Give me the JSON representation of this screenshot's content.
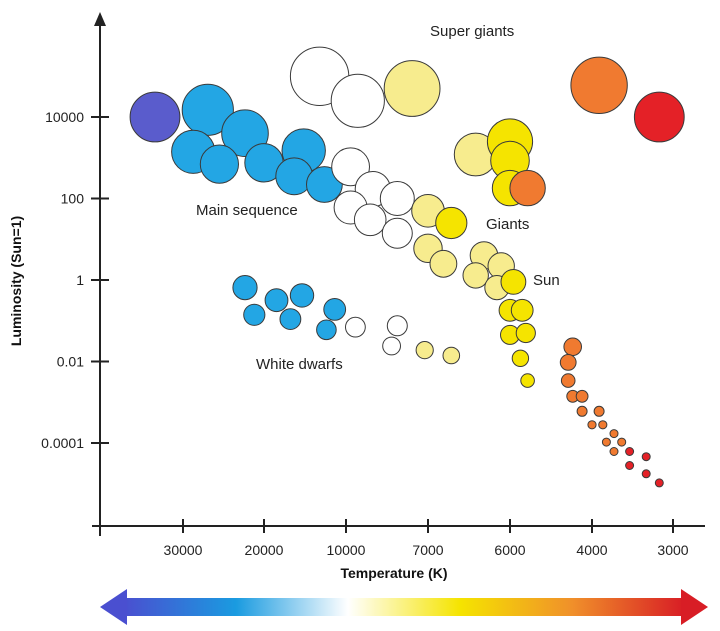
{
  "chart_data": {
    "type": "scatter",
    "title": "",
    "xlabel": "Temperature (K)",
    "ylabel": "Luminosity (Sun=1)",
    "x_scale": "log, reversed (hot stars on the left)",
    "y_scale": "log",
    "grid": false,
    "x_ticks": [
      "30000",
      "20000",
      "10000",
      "7000",
      "6000",
      "4000",
      "3000"
    ],
    "y_ticks": [
      "10000",
      "100",
      "1",
      "0.01",
      "0.0001"
    ],
    "annotations": [
      "Super giants",
      "Main sequence",
      "Giants",
      "Sun",
      "White dwarfs"
    ],
    "color_bar": {
      "direction": "both",
      "stops": [
        "#4a4fd0",
        "#1a9be0",
        "#ffffff",
        "#f5e400",
        "#f0902a",
        "#d81d25"
      ]
    },
    "stars": [
      {
        "group": "Super giants",
        "temp_k": 12500,
        "luminosity": 100000,
        "color": "#ffffff"
      },
      {
        "group": "Super giants",
        "temp_k": 9500,
        "luminosity": 25000,
        "color": "#ffffff"
      },
      {
        "group": "Super giants",
        "temp_k": 7500,
        "luminosity": 50000,
        "color": "#f7ec8e"
      },
      {
        "group": "Super giants",
        "temp_k": 3900,
        "luminosity": 60000,
        "color": "#f07a30"
      },
      {
        "group": "Super giants",
        "temp_k": 3150,
        "luminosity": 10000,
        "color": "#e42127"
      },
      {
        "group": "Main sequence",
        "temp_k": 33000,
        "luminosity": 10000,
        "color": "#5a5ccc"
      },
      {
        "group": "Main sequence",
        "temp_k": 26500,
        "luminosity": 15000,
        "color": "#23a6e4"
      },
      {
        "group": "Main sequence",
        "temp_k": 22000,
        "luminosity": 4000,
        "color": "#23a6e4"
      },
      {
        "group": "Main sequence",
        "temp_k": 28500,
        "luminosity": 1400,
        "color": "#23a6e4"
      },
      {
        "group": "Main sequence",
        "temp_k": 25000,
        "luminosity": 700,
        "color": "#23a6e4"
      },
      {
        "group": "Main sequence",
        "temp_k": 20000,
        "luminosity": 750,
        "color": "#23a6e4"
      },
      {
        "group": "Main sequence",
        "temp_k": 14300,
        "luminosity": 1500,
        "color": "#23a6e4"
      },
      {
        "group": "Main sequence",
        "temp_k": 15500,
        "luminosity": 350,
        "color": "#23a6e4"
      },
      {
        "group": "Main sequence",
        "temp_k": 12000,
        "luminosity": 220,
        "color": "#23a6e4"
      },
      {
        "group": "Main sequence",
        "temp_k": 9800,
        "luminosity": 600,
        "color": "#ffffff"
      },
      {
        "group": "Main sequence",
        "temp_k": 8900,
        "luminosity": 170,
        "color": "#ffffff"
      },
      {
        "group": "Main sequence",
        "temp_k": 9800,
        "luminosity": 60,
        "color": "#ffffff"
      },
      {
        "group": "Main sequence",
        "temp_k": 9000,
        "luminosity": 30,
        "color": "#ffffff"
      },
      {
        "group": "Main sequence",
        "temp_k": 8000,
        "luminosity": 100,
        "color": "#ffffff"
      },
      {
        "group": "Main sequence",
        "temp_k": 8000,
        "luminosity": 14,
        "color": "#ffffff"
      },
      {
        "group": "Main sequence",
        "temp_k": 7000,
        "luminosity": 50,
        "color": "#f7ec8e"
      },
      {
        "group": "Main sequence",
        "temp_k": 6700,
        "luminosity": 25,
        "color": "#f5e400"
      },
      {
        "group": "Main sequence",
        "temp_k": 7000,
        "luminosity": 6,
        "color": "#f7ec8e"
      },
      {
        "group": "Main sequence",
        "temp_k": 6800,
        "luminosity": 2.5,
        "color": "#f7ec8e"
      },
      {
        "group": "Main sequence",
        "temp_k": 6300,
        "luminosity": 4,
        "color": "#f7ec8e"
      },
      {
        "group": "Main sequence",
        "temp_k": 6400,
        "luminosity": 1.3,
        "color": "#f7ec8e"
      },
      {
        "group": "Main sequence",
        "temp_k": 6100,
        "luminosity": 2.2,
        "color": "#f7ec8e"
      },
      {
        "group": "Main sequence",
        "temp_k": 6150,
        "luminosity": 0.65,
        "color": "#f7ec8e"
      },
      {
        "group": "Main sequence",
        "temp_k": 5900,
        "luminosity": 0.9,
        "color": "#f5e400"
      },
      {
        "group": "Main sequence",
        "temp_k": 6000,
        "luminosity": 0.18,
        "color": "#f5e400"
      },
      {
        "group": "Main sequence",
        "temp_k": 5650,
        "luminosity": 0.18,
        "color": "#f5e400"
      },
      {
        "group": "Main sequence",
        "temp_k": 6000,
        "luminosity": 0.045,
        "color": "#f5e400"
      },
      {
        "group": "Main sequence",
        "temp_k": 5550,
        "luminosity": 0.05,
        "color": "#f5e400"
      },
      {
        "group": "Main sequence",
        "temp_k": 5700,
        "luminosity": 0.012,
        "color": "#f5e400"
      },
      {
        "group": "Main sequence",
        "temp_k": 5500,
        "luminosity": 0.0034,
        "color": "#f5e400"
      },
      {
        "group": "Main sequence",
        "temp_k": 4400,
        "luminosity": 0.023,
        "color": "#f07a30"
      },
      {
        "group": "Main sequence",
        "temp_k": 4500,
        "luminosity": 0.0095,
        "color": "#f07a30"
      },
      {
        "group": "Main sequence",
        "temp_k": 4500,
        "luminosity": 0.0034,
        "color": "#f07a30"
      },
      {
        "group": "Main sequence",
        "temp_k": 4400,
        "luminosity": 0.0014,
        "color": "#f07a30"
      },
      {
        "group": "Main sequence",
        "temp_k": 4200,
        "luminosity": 0.0014,
        "color": "#f07a30"
      },
      {
        "group": "Main sequence",
        "temp_k": 4200,
        "luminosity": 0.0006,
        "color": "#f07a30"
      },
      {
        "group": "Main sequence",
        "temp_k": 3900,
        "luminosity": 0.0006,
        "color": "#f07a30"
      },
      {
        "group": "Main sequence",
        "temp_k": 4000,
        "luminosity": 0.00028,
        "color": "#f07a30"
      },
      {
        "group": "Main sequence",
        "temp_k": 3850,
        "luminosity": 0.00028,
        "color": "#f07a30"
      },
      {
        "group": "Main sequence",
        "temp_k": 3700,
        "luminosity": 0.00017,
        "color": "#f07a30"
      },
      {
        "group": "Main sequence",
        "temp_k": 3800,
        "luminosity": 0.000105,
        "color": "#f07a30"
      },
      {
        "group": "Main sequence",
        "temp_k": 3600,
        "luminosity": 0.000105,
        "color": "#f07a30"
      },
      {
        "group": "Main sequence",
        "temp_k": 3700,
        "luminosity": 6.2e-05,
        "color": "#f07a30"
      },
      {
        "group": "Main sequence",
        "temp_k": 3500,
        "luminosity": 6.2e-05,
        "color": "#e42127"
      },
      {
        "group": "Main sequence",
        "temp_k": 3500,
        "luminosity": 2.8e-05,
        "color": "#e42127"
      },
      {
        "group": "Main sequence",
        "temp_k": 3300,
        "luminosity": 4.6e-05,
        "color": "#e42127"
      },
      {
        "group": "Main sequence",
        "temp_k": 3300,
        "luminosity": 1.75e-05,
        "color": "#e42127"
      },
      {
        "group": "Main sequence",
        "temp_k": 3150,
        "luminosity": 1.05e-05,
        "color": "#e42127"
      },
      {
        "group": "Giants",
        "temp_k": 6400,
        "luminosity": 1200,
        "color": "#f7ec8e"
      },
      {
        "group": "Giants",
        "temp_k": 6000,
        "luminosity": 2500,
        "color": "#f5e400"
      },
      {
        "group": "Giants",
        "temp_k": 6000,
        "luminosity": 850,
        "color": "#f5e400"
      },
      {
        "group": "Giants",
        "temp_k": 6000,
        "luminosity": 180,
        "color": "#f5e400"
      },
      {
        "group": "Giants",
        "temp_k": 5500,
        "luminosity": 180,
        "color": "#f07a30"
      },
      {
        "group": "White dwarfs",
        "temp_k": 22000,
        "luminosity": 0.65,
        "color": "#23a6e4"
      },
      {
        "group": "White dwarfs",
        "temp_k": 21000,
        "luminosity": 0.14,
        "color": "#23a6e4"
      },
      {
        "group": "White dwarfs",
        "temp_k": 18000,
        "luminosity": 0.32,
        "color": "#23a6e4"
      },
      {
        "group": "White dwarfs",
        "temp_k": 14500,
        "luminosity": 0.42,
        "color": "#23a6e4"
      },
      {
        "group": "White dwarfs",
        "temp_k": 16000,
        "luminosity": 0.11,
        "color": "#23a6e4"
      },
      {
        "group": "White dwarfs",
        "temp_k": 11000,
        "luminosity": 0.19,
        "color": "#23a6e4"
      },
      {
        "group": "White dwarfs",
        "temp_k": 11800,
        "luminosity": 0.06,
        "color": "#23a6e4"
      },
      {
        "group": "White dwarfs",
        "temp_k": 9600,
        "luminosity": 0.07,
        "color": "#ffffff"
      },
      {
        "group": "White dwarfs",
        "temp_k": 8000,
        "luminosity": 0.075,
        "color": "#ffffff"
      },
      {
        "group": "White dwarfs",
        "temp_k": 8200,
        "luminosity": 0.024,
        "color": "#ffffff"
      },
      {
        "group": "White dwarfs",
        "temp_k": 7100,
        "luminosity": 0.019,
        "color": "#f7ec8e"
      },
      {
        "group": "White dwarfs",
        "temp_k": 6700,
        "luminosity": 0.014,
        "color": "#f7ec8e"
      }
    ]
  }
}
